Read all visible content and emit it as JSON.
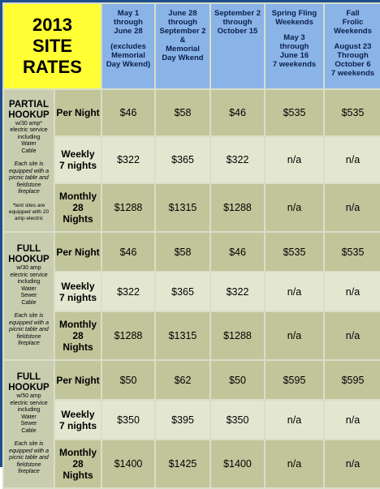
{
  "title_year": "2013",
  "title_line1": "SITE",
  "title_line2": "RATES",
  "columns": [
    {
      "lines": [
        "May 1",
        "through",
        "June 28"
      ],
      "lines2": [
        "(excludes",
        "Memorial",
        "Day Wkend)"
      ]
    },
    {
      "lines": [
        "June 28",
        "through",
        "September 2",
        "&",
        "Memorial",
        "Day Wkend"
      ],
      "lines2": []
    },
    {
      "lines": [
        "September 2",
        "through",
        "October 15"
      ],
      "lines2": []
    },
    {
      "lines": [
        "Spring Fling",
        "Weekends"
      ],
      "lines2": [
        "May 3",
        "through",
        "June 16",
        "7 weekends"
      ]
    },
    {
      "lines": [
        "Fall",
        "Frolic",
        "Weekends"
      ],
      "lines2": [
        "August 23",
        "Through",
        "October 6",
        "7 weekends"
      ]
    }
  ],
  "groups": [
    {
      "name_lines": [
        "PARTIAL",
        "HOOKUP"
      ],
      "desc_lines": [
        "w/30 amp*",
        "electric service",
        "including",
        "Water",
        "Cable"
      ],
      "note_lines": [
        "Each site is",
        "equipped with a",
        "picnic table and",
        "fieldstone",
        "fireplace"
      ],
      "extra_note_lines": [
        "*tent sites are",
        "equipped with 20",
        "amp electric"
      ],
      "rows": [
        {
          "period_lines": [
            "Per Night"
          ],
          "values": [
            "$46",
            "$58",
            "$46",
            "$535",
            "$535"
          ]
        },
        {
          "period_lines": [
            "Weekly",
            "7 nights"
          ],
          "values": [
            "$322",
            "$365",
            "$322",
            "n/a",
            "n/a"
          ]
        },
        {
          "period_lines": [
            "Monthly",
            "28",
            "Nights"
          ],
          "values": [
            "$1288",
            "$1315",
            "$1288",
            "n/a",
            "n/a"
          ]
        }
      ]
    },
    {
      "name_lines": [
        "FULL",
        "HOOKUP"
      ],
      "desc_lines": [
        "w/30 amp",
        "electric service",
        "including",
        "Water",
        "Sewer",
        "Cable"
      ],
      "note_lines": [
        "Each site is",
        "equipped with a",
        "picnic table and",
        "fieldstone",
        "fireplace"
      ],
      "extra_note_lines": [],
      "rows": [
        {
          "period_lines": [
            "Per Night"
          ],
          "values": [
            "$46",
            "$58",
            "$46",
            "$535",
            "$535"
          ]
        },
        {
          "period_lines": [
            "Weekly",
            "7 nights"
          ],
          "values": [
            "$322",
            "$365",
            "$322",
            "n/a",
            "n/a"
          ]
        },
        {
          "period_lines": [
            "Monthly",
            "28",
            "Nights"
          ],
          "values": [
            "$1288",
            "$1315",
            "$1288",
            "n/a",
            "n/a"
          ]
        }
      ]
    },
    {
      "name_lines": [
        "FULL",
        "HOOKUP"
      ],
      "desc_lines": [
        "w/50 amp",
        "electric service",
        "including",
        "Water",
        "Sewer",
        "Cable"
      ],
      "note_lines": [
        "Each site is",
        "equipped with a",
        "picnic table and",
        "fieldstone",
        "fireplace"
      ],
      "extra_note_lines": [],
      "rows": [
        {
          "period_lines": [
            "Per Night"
          ],
          "values": [
            "$50",
            "$62",
            "$50",
            "$595",
            "$595"
          ]
        },
        {
          "period_lines": [
            "Weekly",
            "7 nights"
          ],
          "values": [
            "$350",
            "$395",
            "$350",
            "n/a",
            "n/a"
          ]
        },
        {
          "period_lines": [
            "Monthly",
            "28",
            "Nights"
          ],
          "values": [
            "$1400",
            "$1425",
            "$1400",
            "n/a",
            "n/a"
          ]
        }
      ]
    }
  ],
  "colors": {
    "title_bg": "#ffff33",
    "header_bg": "#8ab4e8",
    "border": "#1f4e8c",
    "row_dark": "#c2c59a",
    "row_light": "#e3e7d0"
  }
}
